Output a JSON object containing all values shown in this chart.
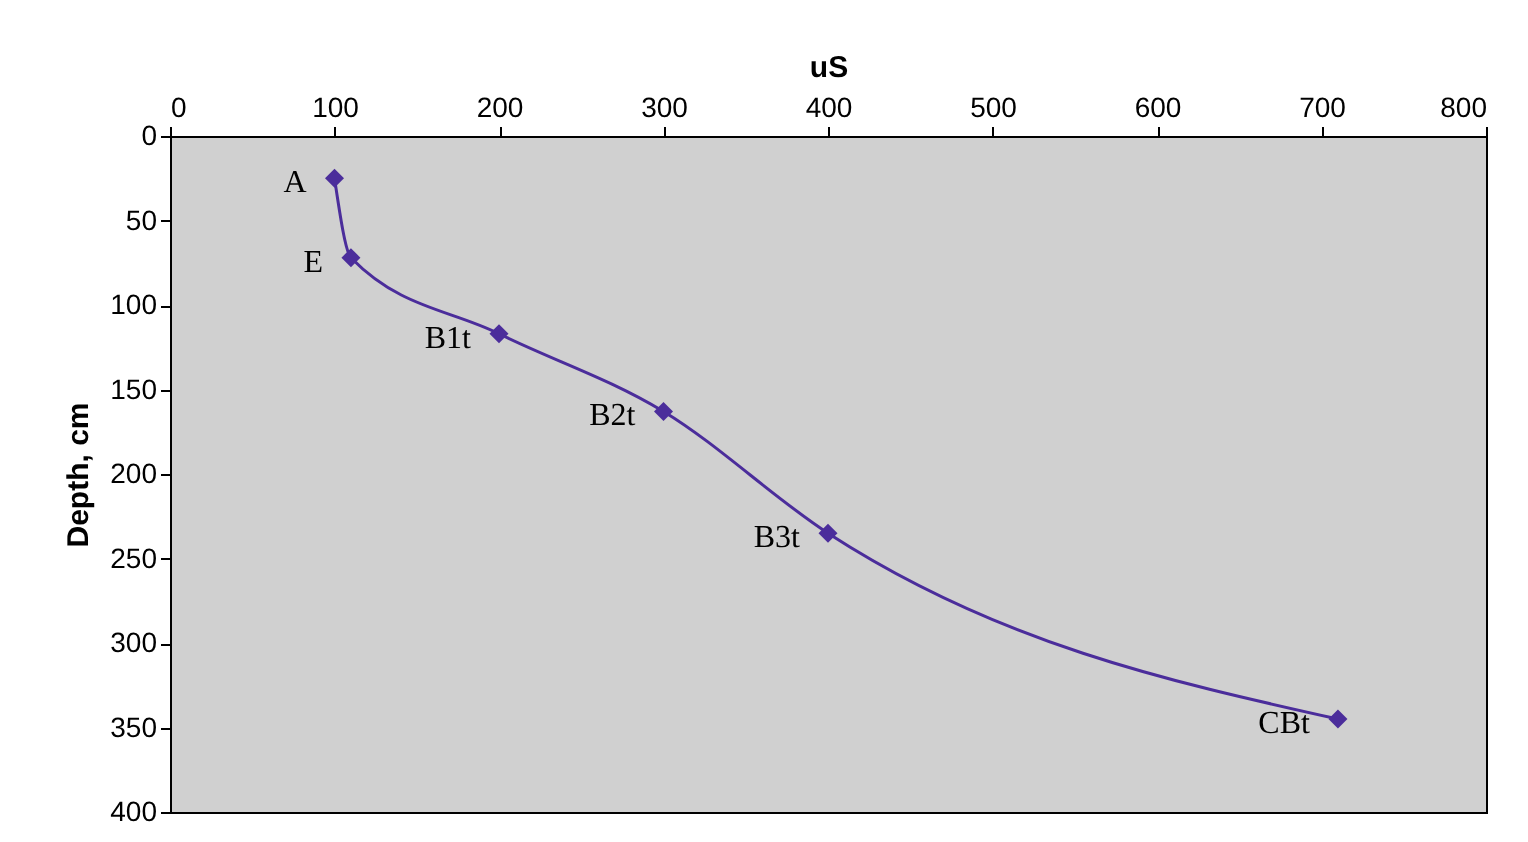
{
  "chart_data": {
    "type": "line",
    "xlabel": "uS",
    "ylabel": "Depth, cm",
    "x": [
      100,
      110,
      200,
      300,
      400,
      710
    ],
    "series": [
      {
        "color": "#4b2d9b",
        "values": [
          25,
          72,
          117,
          163,
          235,
          345
        ]
      }
    ],
    "xlim": [
      0,
      800
    ],
    "xticks": [
      0,
      100,
      200,
      300,
      400,
      500,
      600,
      700,
      800
    ],
    "ylim": [
      400,
      0
    ],
    "yticks": [
      0,
      50,
      100,
      150,
      200,
      250,
      300,
      350,
      400
    ],
    "marker": "diamond",
    "line_style": "solid",
    "annotations": [
      {
        "text": "A",
        "x": 100,
        "y": 25
      },
      {
        "text": "E",
        "x": 110,
        "y": 72
      },
      {
        "text": "B1t",
        "x": 200,
        "y": 117
      },
      {
        "text": "B2t",
        "x": 300,
        "y": 163
      },
      {
        "text": "B3t",
        "x": 400,
        "y": 235
      },
      {
        "text": "CBt",
        "x": 710,
        "y": 345
      }
    ]
  }
}
